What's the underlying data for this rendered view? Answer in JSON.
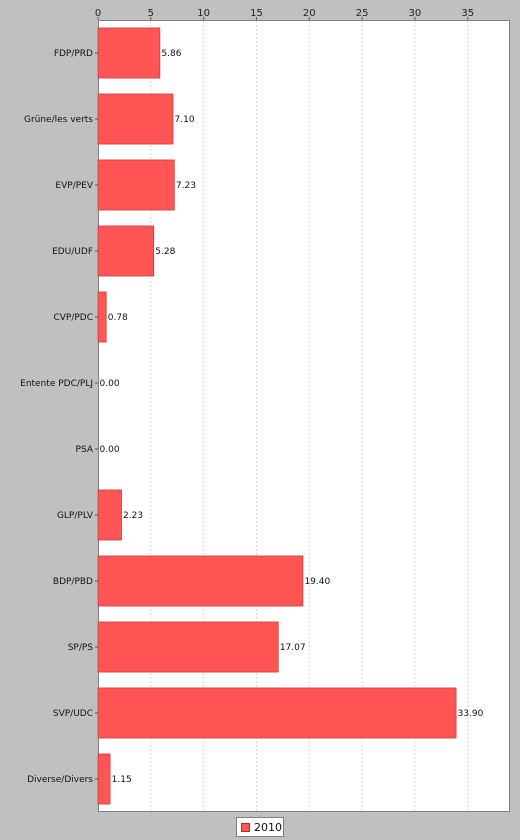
{
  "chart_data": {
    "type": "bar",
    "orientation": "horizontal",
    "categories": [
      "FDP/PRD",
      "Grüne/les verts",
      "EVP/PEV",
      "EDU/UDF",
      "CVP/PDC",
      "Entente PDC/PLJ",
      "PSA",
      "GLP/PLV",
      "BDP/PBD",
      "SP/PS",
      "SVP/UDC",
      "Diverse/Divers"
    ],
    "series": [
      {
        "name": "2010",
        "values": [
          5.86,
          7.1,
          7.23,
          5.28,
          0.78,
          0.0,
          0.0,
          2.23,
          19.4,
          17.07,
          33.9,
          1.15
        ],
        "value_labels": [
          "5.86",
          "7.10",
          "7.23",
          "5.28",
          "0.78",
          "0.00",
          "0.00",
          "2.23",
          "19.40",
          "17.07",
          "33.90",
          "1.15"
        ]
      }
    ],
    "xticks": [
      "0",
      "5",
      "10",
      "15",
      "20",
      "25",
      "30",
      "35"
    ],
    "xtick_values": [
      0,
      5,
      10,
      15,
      20,
      25,
      30,
      35
    ],
    "xlim": [
      0,
      39
    ],
    "title": "",
    "xlabel": "",
    "ylabel": "",
    "grid": "vertical dashed",
    "legend_position": "bottom",
    "bar_color": "#ff5555",
    "bar_border_color": "#b03030"
  }
}
